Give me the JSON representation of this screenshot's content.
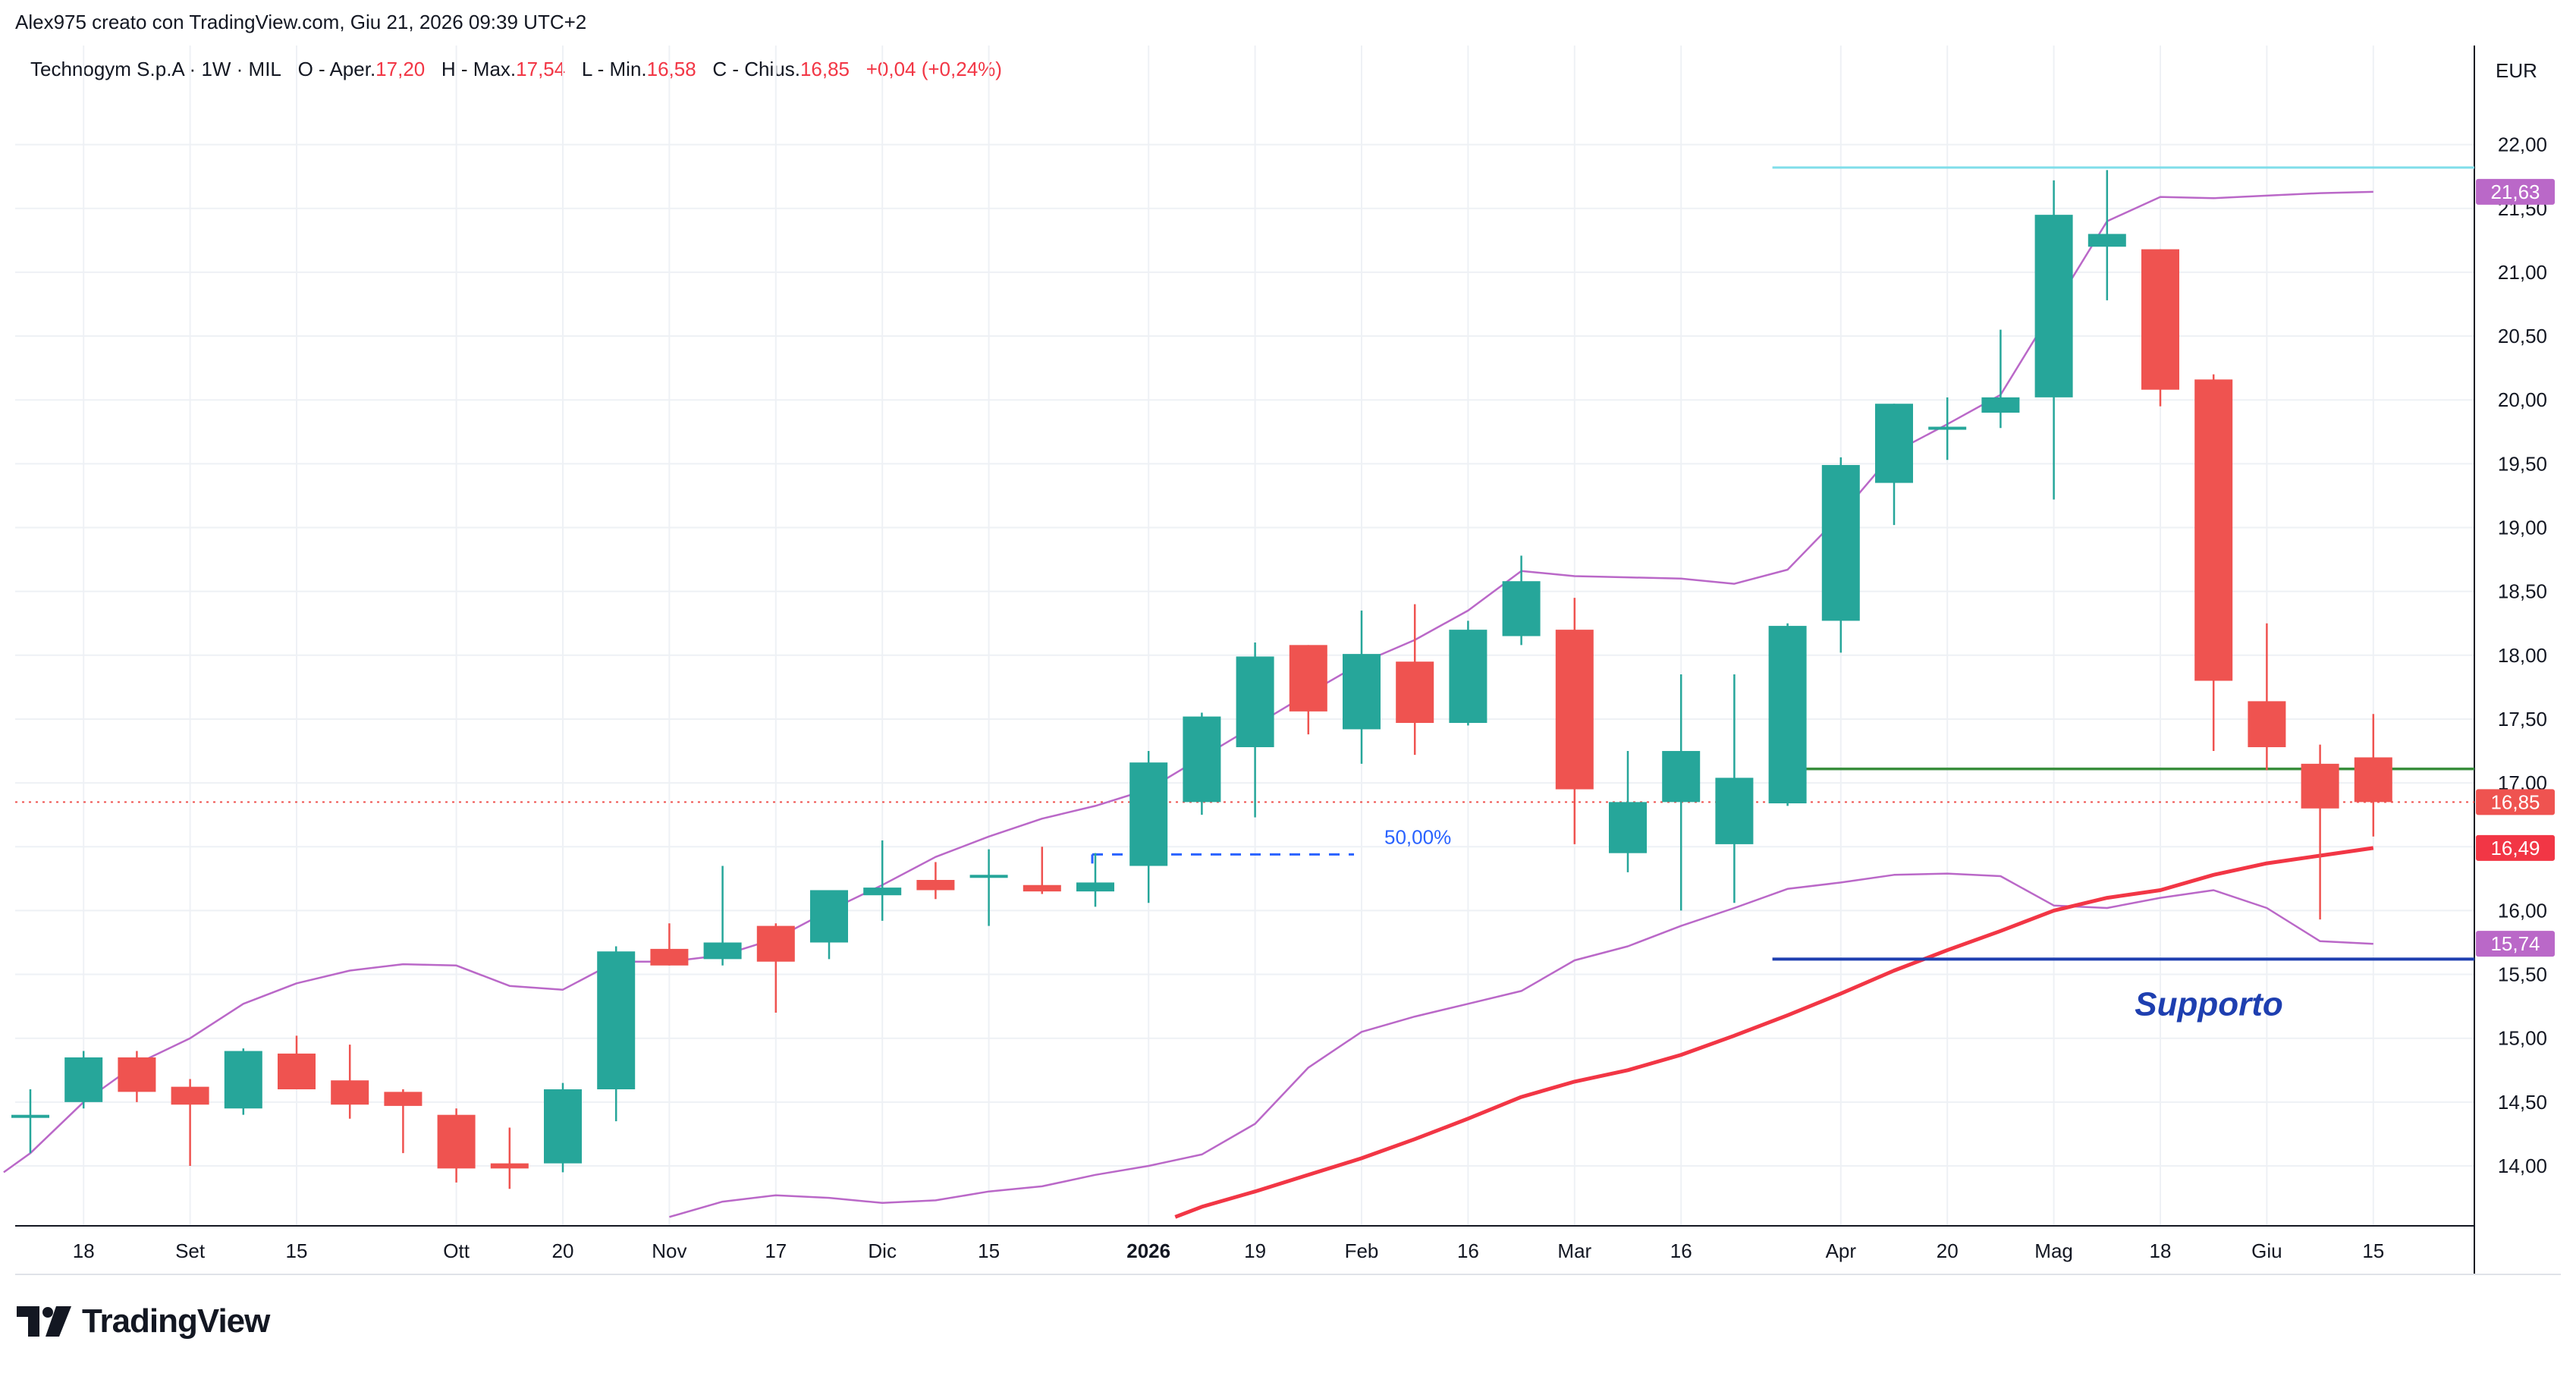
{
  "header": {
    "author_line": "Alex975 creato con TradingView.com, Giu 21, 2026 09:39 UTC+2"
  },
  "legend": {
    "symbol": "Technogym S.p.A · 1W · MIL",
    "open_label": "O - Aper.",
    "open": "17,20",
    "high_label": "H - Max.",
    "high": "17,54",
    "low_label": "L - Min.",
    "low": "16,58",
    "close_label": "C - Chius.",
    "close": "16,85",
    "change": "+0,04 (+0,24%)"
  },
  "currency": "EUR",
  "footer": {
    "brand": "TradingView"
  },
  "colors": {
    "up": "#26a69a",
    "down": "#ef5350",
    "bands": "#ba68c8",
    "ma": "#f23645",
    "resistance": "#80deea",
    "green_line": "#388e3c",
    "support_line": "#1e3fb0",
    "grid": "#eef1f5",
    "fib": "#2962ff"
  },
  "chart_data": {
    "type": "candlestick",
    "ylim": [
      13.6,
      22.5
    ],
    "y_ticks": [
      "14,00",
      "14,50",
      "15,00",
      "15,50",
      "16,00",
      "16,50",
      "17,00",
      "17,50",
      "18,00",
      "18,50",
      "19,00",
      "19,50",
      "20,00",
      "20,50",
      "21,00",
      "21,50",
      "22,00"
    ],
    "x_tick_labels": [
      {
        "i": 1,
        "label": "18"
      },
      {
        "i": 3,
        "label": "Set"
      },
      {
        "i": 5,
        "label": "15"
      },
      {
        "i": 8,
        "label": "Ott"
      },
      {
        "i": 10,
        "label": "20"
      },
      {
        "i": 12,
        "label": "Nov"
      },
      {
        "i": 14,
        "label": "17"
      },
      {
        "i": 16,
        "label": "Dic"
      },
      {
        "i": 18,
        "label": "15"
      },
      {
        "i": 21,
        "label": "2026",
        "bold": true
      },
      {
        "i": 23,
        "label": "19"
      },
      {
        "i": 25,
        "label": "Feb"
      },
      {
        "i": 27,
        "label": "16"
      },
      {
        "i": 29,
        "label": "Mar"
      },
      {
        "i": 31,
        "label": "16"
      },
      {
        "i": 34,
        "label": "Apr"
      },
      {
        "i": 36,
        "label": "20"
      },
      {
        "i": 38,
        "label": "Mag"
      },
      {
        "i": 40,
        "label": "18"
      },
      {
        "i": 42,
        "label": "Giu"
      },
      {
        "i": 44,
        "label": "15"
      }
    ],
    "candles": [
      {
        "o": 14.4,
        "h": 14.6,
        "l": 14.1,
        "c": 14.4
      },
      {
        "o": 14.5,
        "h": 14.9,
        "l": 14.45,
        "c": 14.85
      },
      {
        "o": 14.85,
        "h": 14.9,
        "l": 14.5,
        "c": 14.58
      },
      {
        "o": 14.62,
        "h": 14.68,
        "l": 14.0,
        "c": 14.48
      },
      {
        "o": 14.45,
        "h": 14.92,
        "l": 14.4,
        "c": 14.9
      },
      {
        "o": 14.88,
        "h": 15.02,
        "l": 14.6,
        "c": 14.6
      },
      {
        "o": 14.67,
        "h": 14.95,
        "l": 14.37,
        "c": 14.48
      },
      {
        "o": 14.58,
        "h": 14.6,
        "l": 14.1,
        "c": 14.47
      },
      {
        "o": 14.4,
        "h": 14.45,
        "l": 13.87,
        "c": 13.98
      },
      {
        "o": 14.02,
        "h": 14.3,
        "l": 13.82,
        "c": 13.98
      },
      {
        "o": 14.02,
        "h": 14.65,
        "l": 13.95,
        "c": 14.6
      },
      {
        "o": 14.6,
        "h": 15.72,
        "l": 14.35,
        "c": 15.68
      },
      {
        "o": 15.7,
        "h": 15.9,
        "l": 15.57,
        "c": 15.57
      },
      {
        "o": 15.62,
        "h": 16.35,
        "l": 15.57,
        "c": 15.75
      },
      {
        "o": 15.88,
        "h": 15.9,
        "l": 15.2,
        "c": 15.6
      },
      {
        "o": 15.75,
        "h": 16.16,
        "l": 15.62,
        "c": 16.16
      },
      {
        "o": 16.12,
        "h": 16.55,
        "l": 15.92,
        "c": 16.18
      },
      {
        "o": 16.24,
        "h": 16.38,
        "l": 16.09,
        "c": 16.16
      },
      {
        "o": 16.28,
        "h": 16.48,
        "l": 15.88,
        "c": 16.28
      },
      {
        "o": 16.2,
        "h": 16.5,
        "l": 16.13,
        "c": 16.15
      },
      {
        "o": 16.15,
        "h": 16.45,
        "l": 16.03,
        "c": 16.22
      },
      {
        "o": 16.35,
        "h": 17.25,
        "l": 16.06,
        "c": 17.16
      },
      {
        "o": 16.85,
        "h": 17.55,
        "l": 16.75,
        "c": 17.52
      },
      {
        "o": 17.28,
        "h": 18.1,
        "l": 16.73,
        "c": 17.99
      },
      {
        "o": 18.08,
        "h": 18.08,
        "l": 17.38,
        "c": 17.56
      },
      {
        "o": 17.42,
        "h": 18.35,
        "l": 17.15,
        "c": 18.01
      },
      {
        "o": 17.95,
        "h": 18.4,
        "l": 17.22,
        "c": 17.47
      },
      {
        "o": 17.47,
        "h": 18.27,
        "l": 17.45,
        "c": 18.2
      },
      {
        "o": 18.15,
        "h": 18.78,
        "l": 18.08,
        "c": 18.58
      },
      {
        "o": 18.2,
        "h": 18.45,
        "l": 16.52,
        "c": 16.95
      },
      {
        "o": 16.45,
        "h": 17.25,
        "l": 16.3,
        "c": 16.85
      },
      {
        "o": 16.85,
        "h": 17.85,
        "l": 16.0,
        "c": 17.25
      },
      {
        "o": 16.52,
        "h": 17.85,
        "l": 16.06,
        "c": 17.04
      },
      {
        "o": 16.84,
        "h": 18.25,
        "l": 16.82,
        "c": 18.23
      },
      {
        "o": 18.27,
        "h": 19.55,
        "l": 18.02,
        "c": 19.49
      },
      {
        "o": 19.35,
        "h": 19.97,
        "l": 19.02,
        "c": 19.97
      },
      {
        "o": 19.79,
        "h": 20.02,
        "l": 19.53,
        "c": 19.79
      },
      {
        "o": 19.9,
        "h": 20.55,
        "l": 19.78,
        "c": 20.02
      },
      {
        "o": 20.02,
        "h": 21.72,
        "l": 19.22,
        "c": 21.45
      },
      {
        "o": 21.2,
        "h": 21.8,
        "l": 20.78,
        "c": 21.3
      },
      {
        "o": 21.18,
        "h": 21.18,
        "l": 19.95,
        "c": 20.08
      },
      {
        "o": 20.16,
        "h": 20.2,
        "l": 17.25,
        "c": 17.8
      },
      {
        "o": 17.64,
        "h": 18.25,
        "l": 17.1,
        "c": 17.28
      },
      {
        "o": 17.15,
        "h": 17.3,
        "l": 15.93,
        "c": 16.8
      },
      {
        "o": 17.2,
        "h": 17.54,
        "l": 16.58,
        "c": 16.85
      }
    ],
    "upper_band": [
      [
        -0.5,
        13.95
      ],
      [
        0,
        14.1
      ],
      [
        1,
        14.5
      ],
      [
        2,
        14.8
      ],
      [
        3,
        15.0
      ],
      [
        4,
        15.27
      ],
      [
        5,
        15.43
      ],
      [
        6,
        15.53
      ],
      [
        7,
        15.58
      ],
      [
        8,
        15.57
      ],
      [
        9,
        15.41
      ],
      [
        10,
        15.38
      ],
      [
        11,
        15.6
      ],
      [
        12,
        15.6
      ],
      [
        13,
        15.65
      ],
      [
        14,
        15.78
      ],
      [
        15,
        16.0
      ],
      [
        16,
        16.2
      ],
      [
        17,
        16.42
      ],
      [
        18,
        16.58
      ],
      [
        19,
        16.72
      ],
      [
        20,
        16.82
      ],
      [
        21,
        16.95
      ],
      [
        22,
        17.2
      ],
      [
        23,
        17.45
      ],
      [
        24,
        17.7
      ],
      [
        25,
        17.94
      ],
      [
        26,
        18.12
      ],
      [
        27,
        18.35
      ],
      [
        28,
        18.66
      ],
      [
        29,
        18.62
      ],
      [
        30,
        18.61
      ],
      [
        31,
        18.6
      ],
      [
        32,
        18.56
      ],
      [
        33,
        18.67
      ],
      [
        34,
        19.1
      ],
      [
        35,
        19.59
      ],
      [
        36,
        19.81
      ],
      [
        37,
        20.04
      ],
      [
        38,
        20.72
      ],
      [
        39,
        21.4
      ],
      [
        40,
        21.59
      ],
      [
        41,
        21.58
      ],
      [
        42,
        21.6
      ],
      [
        43,
        21.62
      ],
      [
        44,
        21.63
      ]
    ],
    "lower_band": [
      [
        12,
        13.6
      ],
      [
        13,
        13.72
      ],
      [
        14,
        13.77
      ],
      [
        15,
        13.75
      ],
      [
        16,
        13.71
      ],
      [
        17,
        13.73
      ],
      [
        18,
        13.8
      ],
      [
        19,
        13.84
      ],
      [
        20,
        13.93
      ],
      [
        21,
        14.0
      ],
      [
        22,
        14.09
      ],
      [
        23,
        14.33
      ],
      [
        24,
        14.77
      ],
      [
        25,
        15.05
      ],
      [
        26,
        15.17
      ],
      [
        27,
        15.27
      ],
      [
        28,
        15.37
      ],
      [
        29,
        15.61
      ],
      [
        30,
        15.72
      ],
      [
        31,
        15.88
      ],
      [
        32,
        16.02
      ],
      [
        33,
        16.17
      ],
      [
        34,
        16.22
      ],
      [
        35,
        16.28
      ],
      [
        36,
        16.29
      ],
      [
        37,
        16.27
      ],
      [
        38,
        16.04
      ],
      [
        39,
        16.02
      ],
      [
        40,
        16.1
      ],
      [
        41,
        16.16
      ],
      [
        42,
        16.02
      ],
      [
        43,
        15.76
      ],
      [
        44,
        15.74
      ]
    ],
    "moving_average": [
      [
        21.5,
        13.6
      ],
      [
        22,
        13.68
      ],
      [
        23,
        13.8
      ],
      [
        24,
        13.93
      ],
      [
        25,
        14.06
      ],
      [
        26,
        14.21
      ],
      [
        27,
        14.37
      ],
      [
        28,
        14.54
      ],
      [
        29,
        14.66
      ],
      [
        30,
        14.75
      ],
      [
        31,
        14.87
      ],
      [
        32,
        15.02
      ],
      [
        33,
        15.18
      ],
      [
        34,
        15.35
      ],
      [
        35,
        15.53
      ],
      [
        36,
        15.69
      ],
      [
        37,
        15.84
      ],
      [
        38,
        16.0
      ],
      [
        39,
        16.1
      ],
      [
        40,
        16.16
      ],
      [
        41,
        16.28
      ],
      [
        42,
        16.37
      ],
      [
        43,
        16.43
      ],
      [
        44,
        16.49
      ]
    ],
    "resistance_line": {
      "value": 21.82,
      "from": 33
    },
    "green_line": {
      "value": 17.11,
      "from": 33
    },
    "support_line": {
      "value": 15.62,
      "from": 33,
      "label": "Supporto"
    },
    "fib_level": {
      "value": 16.44,
      "from": 20,
      "to": 25,
      "label": "50,00%"
    },
    "last_price_line": {
      "value": 16.85
    },
    "price_labels": [
      {
        "text": "21,63",
        "value": 21.63,
        "color": "#ba68c8"
      },
      {
        "text": "16,85",
        "value": 16.85,
        "color": "#ef5350"
      },
      {
        "text": "16,49",
        "value": 16.49,
        "color": "#f23645"
      },
      {
        "text": "15,74",
        "value": 15.74,
        "color": "#ba68c8"
      }
    ]
  }
}
